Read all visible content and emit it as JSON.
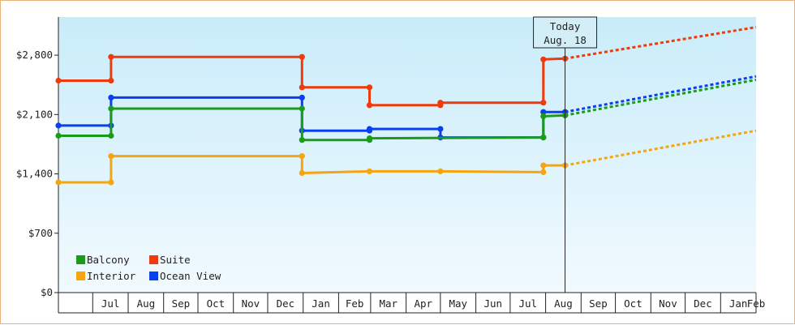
{
  "chart_data": {
    "type": "line",
    "y_ticks": [
      "$0",
      "$700",
      "$1,400",
      "$2,100",
      "$2,800"
    ],
    "y_tick_values": [
      0,
      700,
      1400,
      2100,
      2800
    ],
    "ylim": [
      0,
      3250
    ],
    "x_start_date": "2021-06-01",
    "x_end_date": "2022-02-28",
    "month_labels": [
      "Jul",
      "Aug",
      "Sep",
      "Oct",
      "Nov",
      "Dec",
      "Jan",
      "Feb",
      "Mar",
      "Apr",
      "May",
      "Jun",
      "Jul",
      "Aug",
      "Sep",
      "Oct",
      "Nov",
      "Dec",
      "Jan",
      "Feb"
    ],
    "today": {
      "line1": "Today",
      "line2": "Aug. 18",
      "date": "2022-08-18"
    },
    "legend": [
      {
        "label": "Balcony",
        "color": "#1a9c1a"
      },
      {
        "label": "Suite",
        "color": "#ee3a0c"
      },
      {
        "label": "Interior",
        "color": "#f5a50f"
      },
      {
        "label": "Ocean View",
        "color": "#0a3ff0"
      }
    ],
    "series": [
      {
        "name": "Suite",
        "color": "#ee3a0c",
        "points": [
          [
            "2021-06-01",
            2500
          ],
          [
            "2021-07-17",
            2500
          ],
          [
            "2021-07-17",
            2780
          ],
          [
            "2021-12-31",
            2780
          ],
          [
            "2021-12-31",
            2420
          ],
          [
            "2022-02-28",
            2420
          ],
          [
            "2022-02-28",
            2210
          ],
          [
            "2022-05-01",
            2210
          ],
          [
            "2022-05-01",
            2240
          ],
          [
            "2022-07-30",
            2240
          ],
          [
            "2022-07-30",
            2750
          ],
          [
            "2022-08-18",
            2760
          ]
        ],
        "forecast": [
          [
            "2022-08-18",
            2760
          ],
          [
            "2023-03-01",
            3130
          ]
        ]
      },
      {
        "name": "Ocean View",
        "color": "#0a3ff0",
        "points": [
          [
            "2021-06-01",
            1970
          ],
          [
            "2021-07-17",
            1970
          ],
          [
            "2021-07-17",
            2300
          ],
          [
            "2021-12-31",
            2300
          ],
          [
            "2021-12-31",
            1910
          ],
          [
            "2022-02-28",
            1910
          ],
          [
            "2022-02-28",
            1930
          ],
          [
            "2022-05-01",
            1930
          ],
          [
            "2022-05-01",
            1830
          ],
          [
            "2022-07-30",
            1830
          ],
          [
            "2022-07-30",
            2130
          ],
          [
            "2022-08-18",
            2130
          ]
        ],
        "forecast": [
          [
            "2022-08-18",
            2130
          ],
          [
            "2023-03-01",
            2550
          ]
        ]
      },
      {
        "name": "Balcony",
        "color": "#1a9c1a",
        "points": [
          [
            "2021-06-01",
            1850
          ],
          [
            "2021-07-17",
            1850
          ],
          [
            "2021-07-17",
            2170
          ],
          [
            "2021-12-31",
            2170
          ],
          [
            "2021-12-31",
            1800
          ],
          [
            "2022-02-28",
            1800
          ],
          [
            "2022-02-28",
            1820
          ],
          [
            "2022-07-30",
            1830
          ],
          [
            "2022-07-30",
            2080
          ],
          [
            "2022-08-18",
            2090
          ]
        ],
        "forecast": [
          [
            "2022-08-18",
            2090
          ],
          [
            "2023-03-01",
            2510
          ]
        ]
      },
      {
        "name": "Interior",
        "color": "#f5a50f",
        "points": [
          [
            "2021-06-01",
            1300
          ],
          [
            "2021-07-17",
            1300
          ],
          [
            "2021-07-17",
            1610
          ],
          [
            "2021-12-31",
            1610
          ],
          [
            "2021-12-31",
            1410
          ],
          [
            "2022-02-28",
            1430
          ],
          [
            "2022-05-01",
            1430
          ],
          [
            "2022-07-30",
            1420
          ],
          [
            "2022-07-30",
            1500
          ],
          [
            "2022-08-18",
            1500
          ]
        ],
        "forecast": [
          [
            "2022-08-18",
            1500
          ],
          [
            "2023-03-01",
            1910
          ]
        ]
      }
    ]
  }
}
